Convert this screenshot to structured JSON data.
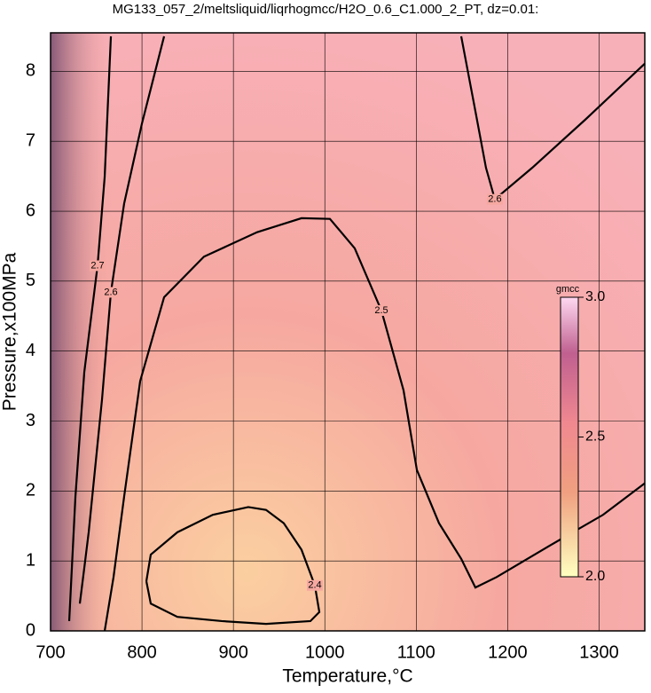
{
  "chart_data": {
    "type": "contour",
    "title": "MG133_057_2/meltsliquid/liqrhogmcc/H2O_0.6_C1.000_2_PT, dz=0.01:",
    "x_label": "Temperature,°C",
    "y_label": "Pressure,x100MPa",
    "xlim": [
      700,
      1350
    ],
    "xticks": [
      700,
      800,
      900,
      1000,
      1100,
      1200,
      1300
    ],
    "ylim": [
      0,
      8.55
    ],
    "yticks": [
      0,
      1,
      2,
      3,
      4,
      5,
      6,
      7,
      8
    ],
    "grid": true,
    "line_color": "#000000",
    "contours": [
      {
        "level": 2.4,
        "t": [
          804.8,
          809.6,
          838.7,
          877.5,
          916.3,
          935.7,
          955.1,
          974.5,
          989.1,
          994,
          984.2,
          935.7,
          887.2,
          838.7,
          809.6,
          804.8
        ],
        "p": [
          0.71,
          1.09,
          1.41,
          1.66,
          1.77,
          1.73,
          1.54,
          1.16,
          0.65,
          0.27,
          0.14,
          0.1,
          0.14,
          0.2,
          0.39,
          0.71
        ]
      },
      {
        "level": 2.5,
        "t": [
          759.2,
          768.9,
          780.5,
          798,
          824.2,
          867.8,
          926,
          974.5,
          1005.6,
          1032.7,
          1061.9,
          1086.1,
          1100.7,
          1124.9,
          1149.2,
          1164.7,
          1188,
          1246.2,
          1304.4,
          1350
        ],
        "p": [
          0,
          0.77,
          1.92,
          3.57,
          4.77,
          5.35,
          5.7,
          5.9,
          5.89,
          5.47,
          4.58,
          3.44,
          2.3,
          1.54,
          1.03,
          0.62,
          0.77,
          1.22,
          1.66,
          2.11
        ]
      },
      {
        "level": 2.6,
        "t": [
          732,
          736.9,
          741.7,
          756.3,
          766,
          780.5,
          799.9,
          824.2
        ],
        "p": [
          0.39,
          0.9,
          1.41,
          3.31,
          4.84,
          6.11,
          7.25,
          8.5
        ]
      },
      {
        "level": 2.6,
        "t": [
          1149.2,
          1163.7,
          1176.3,
          1186,
          1226.8,
          1285,
          1350
        ],
        "p": [
          8.5,
          7.5,
          6.62,
          6.17,
          6.62,
          7.31,
          8.11
        ]
      },
      {
        "level": 2.7,
        "t": [
          720.4,
          727.2,
          736.9,
          751.4,
          759.2,
          766
        ],
        "p": [
          0.14,
          1.92,
          3.7,
          5.22,
          6.49,
          8.5
        ]
      }
    ],
    "colorbar": {
      "label": "gmcc",
      "lim": [
        2.0,
        3.0
      ],
      "ticks": [
        {
          "value": 2.0,
          "label": "2.0"
        },
        2.5,
        {
          "value": 3.0,
          "label": "3.0"
        }
      ]
    }
  }
}
